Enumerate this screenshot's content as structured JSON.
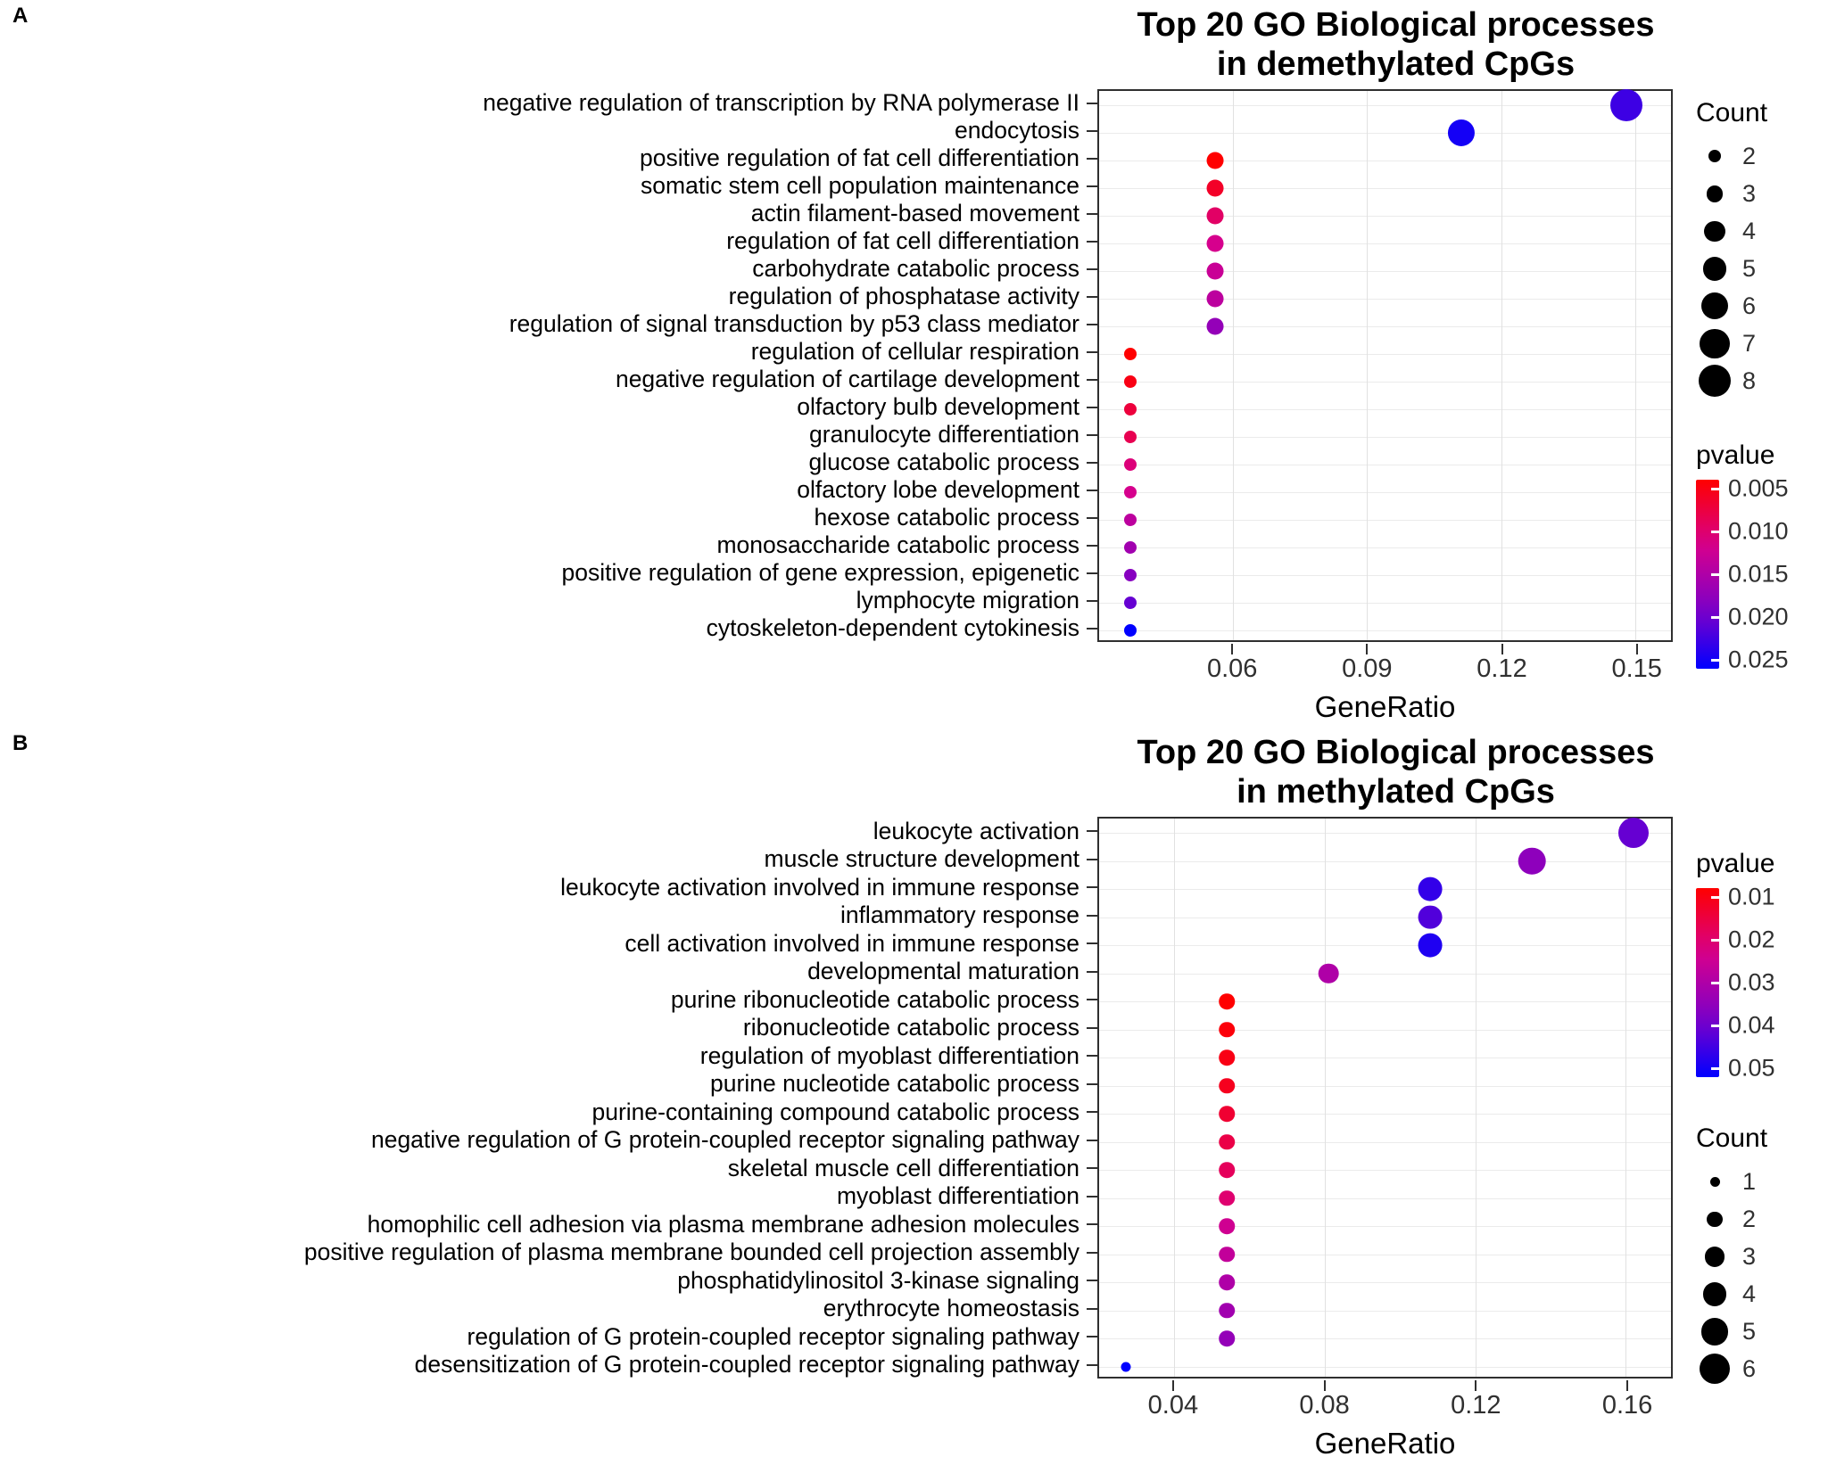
{
  "panels": [
    {
      "label": "A"
    },
    {
      "label": "B"
    }
  ],
  "chart_data": [
    {
      "type": "scatter",
      "title_lines": [
        "Top 20 GO Biological processes",
        "in demethylated CpGs"
      ],
      "xlabel": "GeneRatio",
      "xlim": [
        0.03,
        0.158
      ],
      "xticks": [
        0.06,
        0.09,
        0.12,
        0.15
      ],
      "xtick_labels": [
        "0.06",
        "0.09",
        "0.12",
        "0.15"
      ],
      "grid": true,
      "legend_order": [
        "count",
        "pvalue"
      ],
      "size_legend": {
        "title": "Count",
        "values": [
          2,
          3,
          4,
          5,
          6,
          7,
          8
        ]
      },
      "color_legend": {
        "title": "pvalue",
        "min": 0.005,
        "max": 0.025,
        "ticks": [
          0.005,
          0.01,
          0.015,
          0.02,
          0.025
        ],
        "tick_labels": [
          "0.005",
          "0.010",
          "0.015",
          "0.020",
          "0.025"
        ],
        "low_color": "#FF0000",
        "high_color": "#0000FF"
      },
      "points": [
        {
          "term": "negative regulation of transcription by RNA polymerase II",
          "gene_ratio": 0.148,
          "count": 8,
          "pvalue": 0.022
        },
        {
          "term": "endocytosis",
          "gene_ratio": 0.111,
          "count": 6,
          "pvalue": 0.024
        },
        {
          "term": "positive regulation of fat cell differentiation",
          "gene_ratio": 0.056,
          "count": 3,
          "pvalue": 0.005
        },
        {
          "term": "somatic stem cell population maintenance",
          "gene_ratio": 0.056,
          "count": 3,
          "pvalue": 0.007
        },
        {
          "term": "actin filament-based movement",
          "gene_ratio": 0.056,
          "count": 3,
          "pvalue": 0.01
        },
        {
          "term": "regulation of fat cell differentiation",
          "gene_ratio": 0.056,
          "count": 3,
          "pvalue": 0.012
        },
        {
          "term": "carbohydrate catabolic process",
          "gene_ratio": 0.056,
          "count": 3,
          "pvalue": 0.013
        },
        {
          "term": "regulation of phosphatase activity",
          "gene_ratio": 0.056,
          "count": 3,
          "pvalue": 0.014
        },
        {
          "term": "regulation of signal transduction by p53 class mediator",
          "gene_ratio": 0.056,
          "count": 3,
          "pvalue": 0.017
        },
        {
          "term": "regulation of cellular respiration",
          "gene_ratio": 0.037,
          "count": 2,
          "pvalue": 0.005
        },
        {
          "term": "negative regulation of cartilage development",
          "gene_ratio": 0.037,
          "count": 2,
          "pvalue": 0.006
        },
        {
          "term": "olfactory bulb development",
          "gene_ratio": 0.037,
          "count": 2,
          "pvalue": 0.008
        },
        {
          "term": "granulocyte differentiation",
          "gene_ratio": 0.037,
          "count": 2,
          "pvalue": 0.009
        },
        {
          "term": "glucose catabolic process",
          "gene_ratio": 0.037,
          "count": 2,
          "pvalue": 0.011
        },
        {
          "term": "olfactory lobe development",
          "gene_ratio": 0.037,
          "count": 2,
          "pvalue": 0.012
        },
        {
          "term": "hexose catabolic process",
          "gene_ratio": 0.037,
          "count": 2,
          "pvalue": 0.014
        },
        {
          "term": "monosaccharide catabolic process",
          "gene_ratio": 0.037,
          "count": 2,
          "pvalue": 0.016
        },
        {
          "term": "positive regulation of gene expression, epigenetic",
          "gene_ratio": 0.037,
          "count": 2,
          "pvalue": 0.018
        },
        {
          "term": "lymphocyte migration",
          "gene_ratio": 0.037,
          "count": 2,
          "pvalue": 0.02
        },
        {
          "term": "cytoskeleton-dependent cytokinesis",
          "gene_ratio": 0.037,
          "count": 2,
          "pvalue": 0.026
        }
      ]
    },
    {
      "type": "scatter",
      "title_lines": [
        "Top 20 GO Biological processes",
        "in methylated CpGs"
      ],
      "xlabel": "GeneRatio",
      "xlim": [
        0.02,
        0.172
      ],
      "xticks": [
        0.04,
        0.08,
        0.12,
        0.16
      ],
      "xtick_labels": [
        "0.04",
        "0.08",
        "0.12",
        "0.16"
      ],
      "grid": true,
      "legend_order": [
        "pvalue",
        "count"
      ],
      "size_legend": {
        "title": "Count",
        "values": [
          1,
          2,
          3,
          4,
          5,
          6
        ]
      },
      "color_legend": {
        "title": "pvalue",
        "min": 0.01,
        "max": 0.05,
        "ticks": [
          0.01,
          0.02,
          0.03,
          0.04,
          0.05
        ],
        "tick_labels": [
          "0.01",
          "0.02",
          "0.03",
          "0.04",
          "0.05"
        ],
        "low_color": "#FF0000",
        "high_color": "#0000FF"
      },
      "points": [
        {
          "term": "leukocyte activation",
          "gene_ratio": 0.162,
          "count": 6,
          "pvalue": 0.04
        },
        {
          "term": "muscle structure development",
          "gene_ratio": 0.135,
          "count": 5,
          "pvalue": 0.035
        },
        {
          "term": "leukocyte activation involved in immune response",
          "gene_ratio": 0.108,
          "count": 4,
          "pvalue": 0.045
        },
        {
          "term": "inflammatory response",
          "gene_ratio": 0.108,
          "count": 4,
          "pvalue": 0.042
        },
        {
          "term": "cell activation involved in immune response",
          "gene_ratio": 0.108,
          "count": 4,
          "pvalue": 0.047
        },
        {
          "term": "developmental maturation",
          "gene_ratio": 0.081,
          "count": 3,
          "pvalue": 0.03
        },
        {
          "term": "purine ribonucleotide catabolic process",
          "gene_ratio": 0.054,
          "count": 2,
          "pvalue": 0.01
        },
        {
          "term": "ribonucleotide catabolic process",
          "gene_ratio": 0.054,
          "count": 2,
          "pvalue": 0.011
        },
        {
          "term": "regulation of myoblast differentiation",
          "gene_ratio": 0.054,
          "count": 2,
          "pvalue": 0.012
        },
        {
          "term": "purine nucleotide catabolic process",
          "gene_ratio": 0.054,
          "count": 2,
          "pvalue": 0.013
        },
        {
          "term": "purine-containing compound catabolic process",
          "gene_ratio": 0.054,
          "count": 2,
          "pvalue": 0.015
        },
        {
          "term": "negative regulation of G protein-coupled receptor signaling pathway",
          "gene_ratio": 0.054,
          "count": 2,
          "pvalue": 0.017
        },
        {
          "term": "skeletal muscle cell differentiation",
          "gene_ratio": 0.054,
          "count": 2,
          "pvalue": 0.019
        },
        {
          "term": "myoblast differentiation",
          "gene_ratio": 0.054,
          "count": 2,
          "pvalue": 0.021
        },
        {
          "term": "homophilic cell adhesion via plasma membrane adhesion molecules",
          "gene_ratio": 0.054,
          "count": 2,
          "pvalue": 0.025
        },
        {
          "term": "positive regulation of plasma membrane bounded cell projection assembly",
          "gene_ratio": 0.054,
          "count": 2,
          "pvalue": 0.027
        },
        {
          "term": "phosphatidylinositol 3-kinase signaling",
          "gene_ratio": 0.054,
          "count": 2,
          "pvalue": 0.03
        },
        {
          "term": "erythrocyte homeostasis",
          "gene_ratio": 0.054,
          "count": 2,
          "pvalue": 0.032
        },
        {
          "term": "regulation of G protein-coupled receptor signaling pathway",
          "gene_ratio": 0.054,
          "count": 2,
          "pvalue": 0.034
        },
        {
          "term": "desensitization of G protein-coupled receptor signaling pathway",
          "gene_ratio": 0.027,
          "count": 1,
          "pvalue": 0.05
        }
      ]
    }
  ]
}
